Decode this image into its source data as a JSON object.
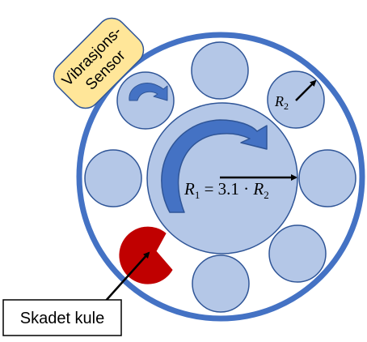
{
  "sensor_label": {
    "line1": "Vibrasjons-",
    "line2": "Sensor"
  },
  "damaged_ball_label": "Skadet kule",
  "inner_radius_formula": {
    "radius_symbol": "R",
    "radius_subscript": "1",
    "equals": " = 3.1 · ",
    "ratio_symbol": "R",
    "ratio_subscript": "2"
  },
  "ball_radius_label": {
    "symbol": "R",
    "subscript": "2"
  },
  "colors": {
    "outer_ring": "#4472c4",
    "ball_fill": "#b4c7e7",
    "ball_stroke": "#2f5597",
    "rotation_arrow": "#4472c4",
    "damaged_ball": "#c00000",
    "sensor_fill": "#ffe699",
    "sensor_stroke": "#2f5597"
  }
}
